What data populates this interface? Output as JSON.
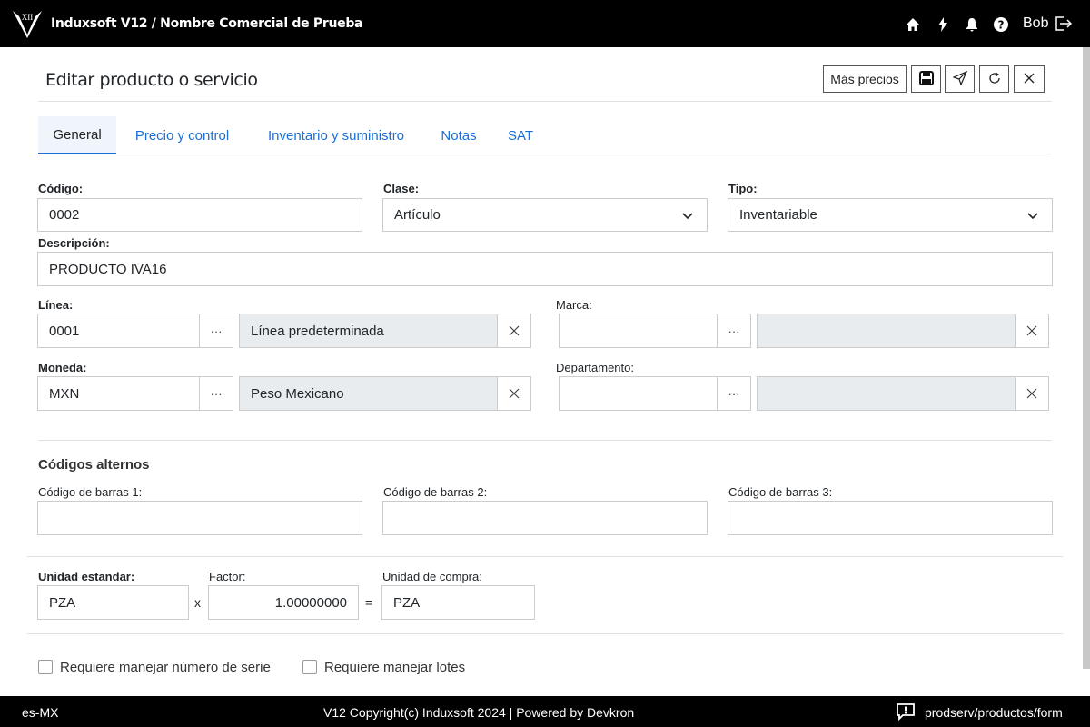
{
  "topbar": {
    "title": "Induxsoft V12 / Nombre Comercial de Prueba",
    "logo_text": "XII",
    "user": "Bob",
    "icons": [
      "home-icon",
      "bolt-icon",
      "bell-icon",
      "help-icon",
      "logout-icon"
    ]
  },
  "page": {
    "title": "Editar producto o servicio",
    "more_prices": "Más precios"
  },
  "tabs": [
    {
      "label": "General",
      "active": true
    },
    {
      "label": "Precio y control"
    },
    {
      "label": "Inventario y suministro"
    },
    {
      "label": "Notas"
    },
    {
      "label": "SAT"
    }
  ],
  "form": {
    "codigo": {
      "label": "Código:",
      "value": "0002"
    },
    "clase": {
      "label": "Clase:",
      "value": "Artículo"
    },
    "tipo": {
      "label": "Tipo:",
      "value": "Inventariable"
    },
    "descripcion": {
      "label": "Descripción:",
      "value": "PRODUCTO IVA16"
    },
    "linea": {
      "label": "Línea:",
      "code": "0001",
      "name": "Línea predeterminada"
    },
    "marca": {
      "label": "Marca:",
      "code": "",
      "name": ""
    },
    "moneda": {
      "label": "Moneda:",
      "code": "MXN",
      "name": "Peso Mexicano"
    },
    "departamento": {
      "label": "Departamento:",
      "code": "",
      "name": ""
    },
    "alt_title": "Códigos alternos",
    "barcodes": [
      {
        "label": "Código de barras 1:",
        "value": ""
      },
      {
        "label": "Código de barras 2:",
        "value": ""
      },
      {
        "label": "Código de barras 3:",
        "value": ""
      }
    ],
    "unidad_std": {
      "label": "Unidad estandar:",
      "value": "PZA"
    },
    "times": "x",
    "factor": {
      "label": "Factor:",
      "value": "1.00000000"
    },
    "equals": "=",
    "unidad_compra": {
      "label": "Unidad de compra:",
      "value": "PZA"
    },
    "serie": {
      "label": "Requiere manejar número de serie",
      "checked": false
    },
    "lotes": {
      "label": "Requiere manejar lotes",
      "checked": false
    }
  },
  "footer": {
    "locale": "es-MX",
    "copyright": "V12 Copyright(c) Induxsoft 2024 | Powered by Devkron",
    "route": "prodserv/productos/form"
  }
}
